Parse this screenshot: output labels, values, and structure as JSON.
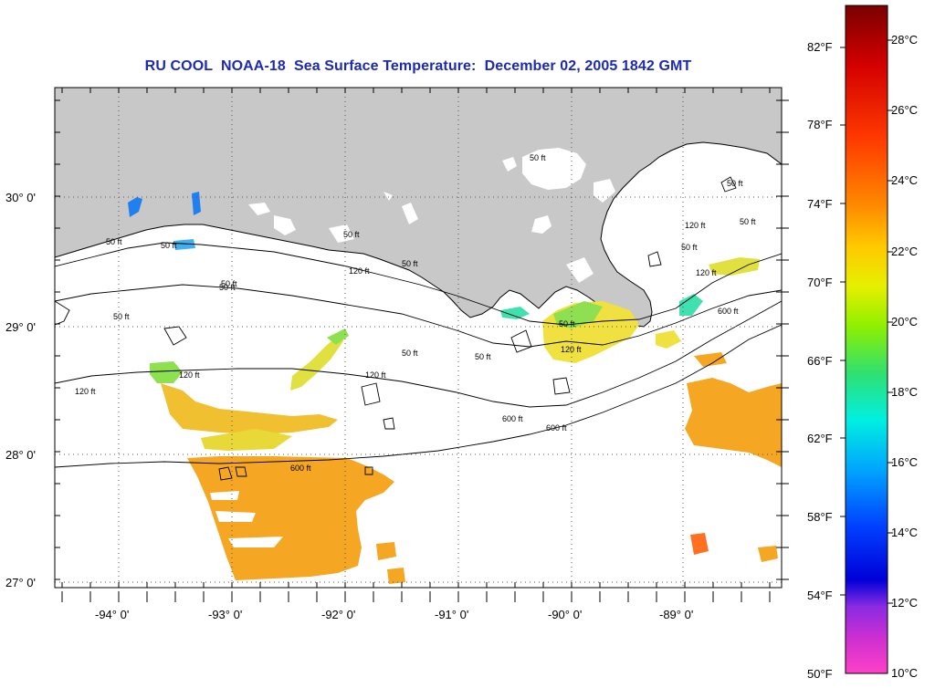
{
  "title": "RU COOL  NOAA-18  Sea Surface Temperature:  December 02, 2005 1842 GMT",
  "latitude_ticks": [
    "30° 0'",
    "29° 0'",
    "28° 0'",
    "27° 0'"
  ],
  "longitude_ticks": [
    "-94° 0'",
    "-93° 0'",
    "-92° 0'",
    "-91° 0'",
    "-90° 0'",
    "-89° 0'"
  ],
  "contour_labels": [
    "50 ft",
    "120 ft",
    "600 ft"
  ],
  "colorbar": {
    "fahrenheit_labels": [
      "82°F",
      "78°F",
      "74°F",
      "70°F",
      "66°F",
      "62°F",
      "58°F",
      "54°F",
      "50°F"
    ],
    "celsius_labels": [
      "28°C",
      "26°C",
      "24°C",
      "22°C",
      "20°C",
      "18°C",
      "16°C",
      "14°C",
      "12°C",
      "10°C"
    ],
    "colors": [
      "#7a0000",
      "#d40000",
      "#ff3a00",
      "#ff8a00",
      "#ffc800",
      "#e6f000",
      "#8ef000",
      "#30e070",
      "#00f0e0",
      "#00a0ff",
      "#0040ff",
      "#0000d8",
      "#8a2be2",
      "#d030d0",
      "#ff40c8"
    ]
  },
  "colors": {
    "land": "#c8c8c8",
    "water": "#ffffff",
    "title": "#1c2ab4",
    "sst_orange": "#f5a623",
    "sst_yellow": "#f0e040",
    "sst_green": "#8ee050"
  }
}
